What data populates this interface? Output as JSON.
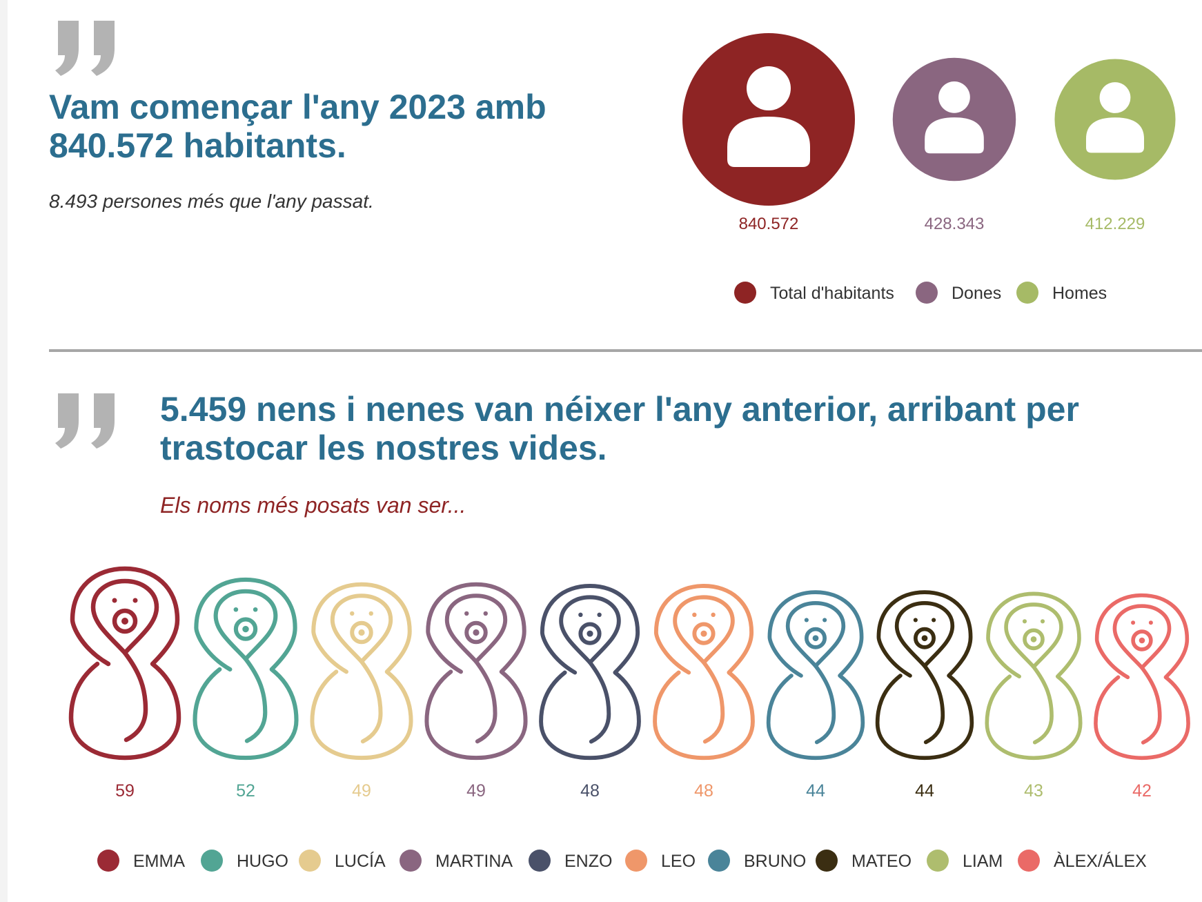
{
  "section1": {
    "headline": "Vam començar l'any 2023 amb 840.572 habitants.",
    "subtitle": "8.493 persones més que l'any passat."
  },
  "section2": {
    "headline": "5.459 nens i nenes van néixer l'any anterior, arribant per trastocar les nostres vides.",
    "subtitle": "Els noms més posats van ser..."
  },
  "icons": {
    "quote": "quote-icon",
    "person": "person-icon",
    "baby": "baby-icon"
  },
  "chart_data": [
    {
      "type": "bubble",
      "categories": [
        "Total d'habitants",
        "Dones",
        "Homes"
      ],
      "values": [
        840572,
        428343,
        412229
      ],
      "value_labels": [
        "840.572",
        "428.343",
        "412.229"
      ],
      "colors": [
        "#8e2424",
        "#8a6680",
        "#a6ba66"
      ],
      "legend": {
        "position": "bottom-right"
      }
    },
    {
      "type": "pictogram",
      "categories": [
        "EMMA",
        "HUGO",
        "LUCÍA",
        "MARTINA",
        "ENZO",
        "LEO",
        "BRUNO",
        "MATEO",
        "LIAM",
        "ÀLEX/ÁLEX"
      ],
      "values": [
        59,
        52,
        49,
        49,
        48,
        48,
        44,
        44,
        43,
        42
      ],
      "colors": [
        "#9b2a35",
        "#52a594",
        "#e5cb8f",
        "#8a6680",
        "#4a5169",
        "#ef976a",
        "#4a8499",
        "#3b2e12",
        "#aebd6e",
        "#ea6a67"
      ],
      "legend": {
        "position": "bottom"
      }
    }
  ]
}
